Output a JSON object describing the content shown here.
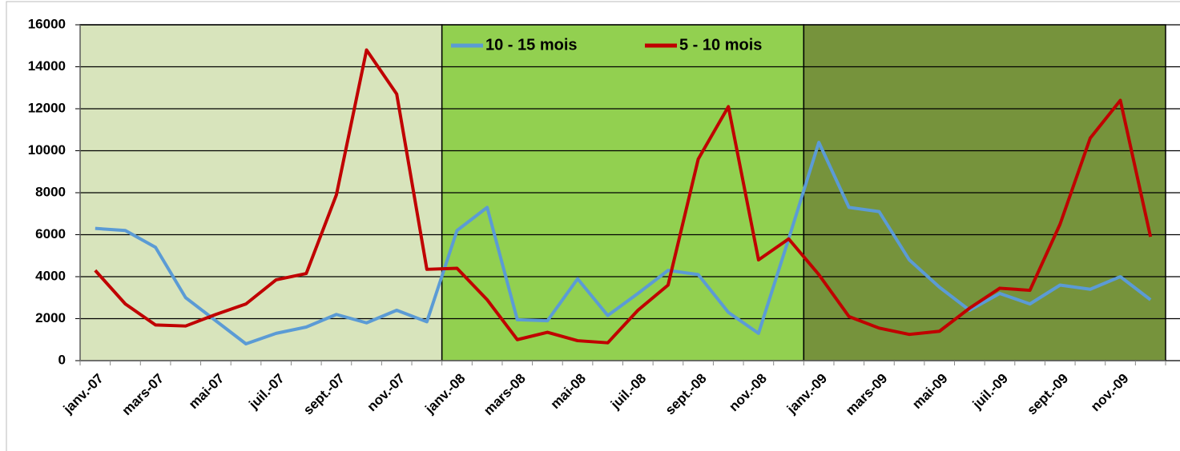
{
  "chart_data": {
    "type": "line",
    "categories": [
      "janv.-07",
      null,
      "mars-07",
      null,
      "mai-07",
      null,
      "juil.-07",
      null,
      "sept.-07",
      null,
      "nov.-07",
      null,
      "janv.-08",
      null,
      "mars-08",
      null,
      "mai-08",
      null,
      "juil.-08",
      null,
      "sept.-08",
      null,
      "nov.-08",
      null,
      "janv.-09",
      null,
      "mars-09",
      null,
      "mai-09",
      null,
      "juil.-09",
      null,
      "sept.-09",
      null,
      "nov.-09",
      null
    ],
    "series": [
      {
        "name": "10 - 15 mois",
        "color": "#5b9bd5",
        "values": [
          6300,
          6200,
          5400,
          3000,
          1900,
          800,
          1300,
          1600,
          2200,
          1800,
          2400,
          1850,
          6200,
          7300,
          1950,
          1900,
          3900,
          2150,
          3200,
          4300,
          4100,
          2300,
          1300,
          5800,
          10400,
          7300,
          7100,
          4800,
          3500,
          2400,
          3200,
          2700,
          3600,
          3400,
          4000,
          2900
        ]
      },
      {
        "name": "5 - 10 mois",
        "color": "#c00000",
        "values": [
          4300,
          2700,
          1700,
          1650,
          2200,
          2700,
          3850,
          4150,
          7900,
          14800,
          12700,
          4350,
          4400,
          2900,
          1000,
          1350,
          950,
          850,
          2400,
          3600,
          9600,
          12100,
          4800,
          5800,
          4100,
          2100,
          1550,
          1250,
          1400,
          2500,
          3450,
          3350,
          6500,
          10600,
          12400,
          5900
        ]
      }
    ],
    "ylim": [
      0,
      16000
    ],
    "yticks": [
      0,
      2000,
      4000,
      6000,
      8000,
      10000,
      12000,
      14000,
      16000
    ],
    "grid": true,
    "legend": "top"
  }
}
